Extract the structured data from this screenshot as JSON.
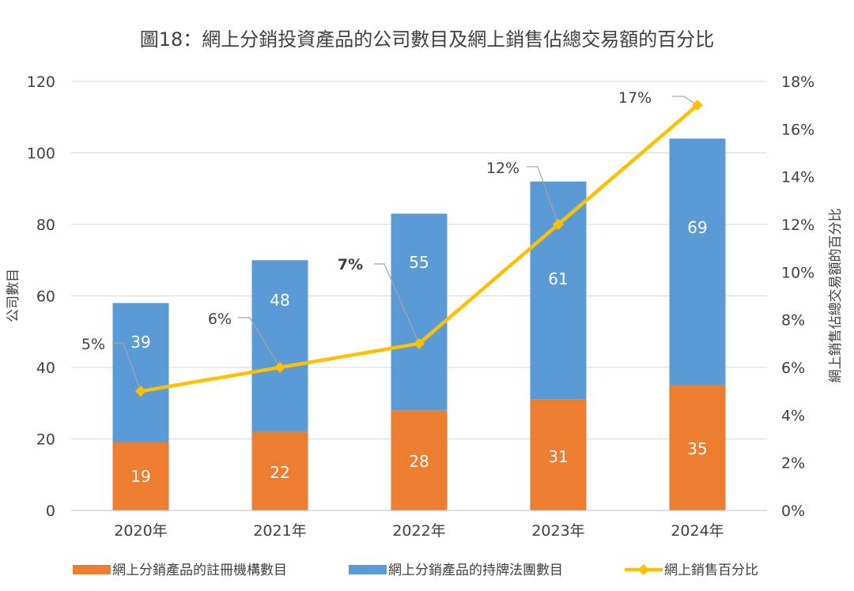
{
  "chart_data": {
    "type": "bar",
    "title": "圖18：網上分銷投資產品的公司數目及網上銷售佔總交易額的百分比",
    "ylabel": "公司數目",
    "y2label": "網上銷售佔總交易額的百分比",
    "ylim": [
      0,
      120
    ],
    "y_ticks": [
      "0",
      "20",
      "40",
      "60",
      "80",
      "100",
      "120"
    ],
    "y2lim": [
      0,
      18
    ],
    "y2_ticks": [
      "0%",
      "2%",
      "4%",
      "6%",
      "8%",
      "10%",
      "12%",
      "14%",
      "16%",
      "18%"
    ],
    "grid": true,
    "legend_position": "bottom",
    "categories": [
      "2020年",
      "2021年",
      "2022年",
      "2023年",
      "2024年"
    ],
    "series": [
      {
        "name": "網上分銷產品的註冊機構數目",
        "type": "stacked-bar",
        "axis": "left",
        "color": "#ED7D31",
        "values": [
          19,
          22,
          28,
          31,
          35
        ],
        "labels": [
          "19",
          "22",
          "28",
          "31",
          "35"
        ]
      },
      {
        "name": "網上分銷產品的持牌法團數目",
        "type": "stacked-bar",
        "axis": "left",
        "color": "#5B9BD5",
        "values": [
          39,
          48,
          55,
          61,
          69
        ],
        "labels": [
          "39",
          "48",
          "55",
          "61",
          "69"
        ]
      },
      {
        "name": "網上銷售百分比",
        "type": "line",
        "axis": "right",
        "color": "#FFC000",
        "values": [
          5,
          6,
          7,
          12,
          17
        ],
        "labels": [
          "5%",
          "6%",
          "7%",
          "12%",
          "17%"
        ]
      }
    ]
  }
}
